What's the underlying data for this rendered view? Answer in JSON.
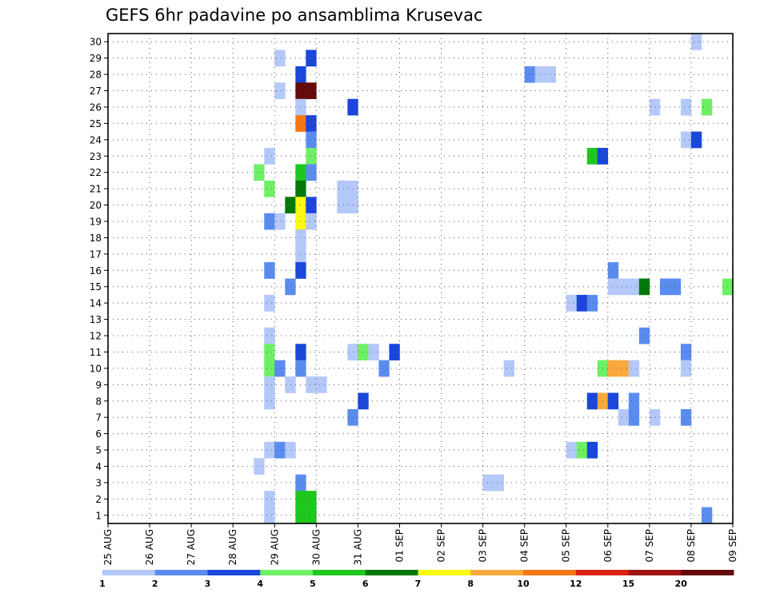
{
  "chart_data": {
    "type": "heatmap",
    "title": "GEFS 6hr padavine po ansamblima Krusevac",
    "x_tick_labels": [
      "25 AUG",
      "26 AUG",
      "27 AUG",
      "28 AUG",
      "29 AUG",
      "30 AUG",
      "31 AUG",
      "01 SEP",
      "02 SEP",
      "03 SEP",
      "04 SEP",
      "05 SEP",
      "06 SEP",
      "07 SEP",
      "08 SEP",
      "09 SEP"
    ],
    "y_tick_labels": [
      "1",
      "2",
      "3",
      "4",
      "5",
      "6",
      "7",
      "8",
      "9",
      "10",
      "11",
      "12",
      "13",
      "14",
      "15",
      "16",
      "17",
      "18",
      "19",
      "20",
      "21",
      "22",
      "23",
      "24",
      "25",
      "26",
      "27",
      "28",
      "29",
      "30"
    ],
    "x_range_steps": [
      0,
      60
    ],
    "y_range_members": [
      0.5,
      30.5
    ],
    "grid": true,
    "colorbar": {
      "placement": "bottom",
      "labels": [
        "1",
        "2",
        "3",
        "4",
        "5",
        "6",
        "7",
        "8",
        "10",
        "12",
        "15",
        "20"
      ],
      "colors": [
        "#b4c8fa",
        "#5a8cf0",
        "#1a46dc",
        "#6ef064",
        "#1ec81e",
        "#00780a",
        "#fafa14",
        "#faaa3c",
        "#f57814",
        "#dc2314",
        "#a01414",
        "#640a0a"
      ]
    },
    "cells_note": "step index (6h steps from 25 AUG 00z), member, color class (0-based)",
    "cells": [
      [
        56,
        30,
        0
      ],
      [
        16,
        29,
        0
      ],
      [
        19,
        29,
        2
      ],
      [
        18,
        28,
        2
      ],
      [
        40,
        28,
        1
      ],
      [
        41,
        28,
        0
      ],
      [
        42,
        28,
        0
      ],
      [
        16,
        27,
        0
      ],
      [
        18,
        27,
        11
      ],
      [
        19,
        27,
        11
      ],
      [
        18,
        26,
        0
      ],
      [
        23,
        26,
        2
      ],
      [
        52,
        26,
        0
      ],
      [
        55,
        26,
        0
      ],
      [
        57,
        26,
        3
      ],
      [
        18,
        25,
        8
      ],
      [
        19,
        25,
        2
      ],
      [
        19,
        24,
        1
      ],
      [
        55,
        24,
        0
      ],
      [
        56,
        24,
        2
      ],
      [
        15,
        23,
        0
      ],
      [
        19,
        23,
        3
      ],
      [
        46,
        23,
        4
      ],
      [
        47,
        23,
        2
      ],
      [
        14,
        22,
        3
      ],
      [
        18,
        22,
        4
      ],
      [
        19,
        22,
        1
      ],
      [
        15,
        21,
        3
      ],
      [
        18,
        21,
        5
      ],
      [
        22,
        21,
        0
      ],
      [
        23,
        21,
        0
      ],
      [
        17,
        20,
        5
      ],
      [
        18,
        20,
        6
      ],
      [
        19,
        20,
        2
      ],
      [
        22,
        20,
        0
      ],
      [
        23,
        20,
        0
      ],
      [
        15,
        19,
        1
      ],
      [
        16,
        19,
        0
      ],
      [
        18,
        19,
        6
      ],
      [
        19,
        19,
        0
      ],
      [
        18,
        18,
        0
      ],
      [
        18,
        17,
        0
      ],
      [
        15,
        16,
        1
      ],
      [
        18,
        16,
        2
      ],
      [
        48,
        16,
        1
      ],
      [
        17,
        15,
        1
      ],
      [
        48,
        15,
        0
      ],
      [
        49,
        15,
        0
      ],
      [
        50,
        15,
        0
      ],
      [
        51,
        15,
        5
      ],
      [
        53,
        15,
        1
      ],
      [
        54,
        15,
        1
      ],
      [
        59,
        15,
        3
      ],
      [
        15,
        14,
        0
      ],
      [
        44,
        14,
        0
      ],
      [
        45,
        14,
        2
      ],
      [
        46,
        14,
        1
      ],
      [
        15,
        12,
        0
      ],
      [
        51,
        12,
        1
      ],
      [
        15,
        11,
        3
      ],
      [
        18,
        11,
        2
      ],
      [
        23,
        11,
        0
      ],
      [
        24,
        11,
        3
      ],
      [
        25,
        11,
        0
      ],
      [
        27,
        11,
        2
      ],
      [
        55,
        11,
        1
      ],
      [
        15,
        10,
        3
      ],
      [
        16,
        10,
        1
      ],
      [
        18,
        10,
        1
      ],
      [
        26,
        10,
        1
      ],
      [
        38,
        10,
        0
      ],
      [
        47,
        10,
        3
      ],
      [
        48,
        10,
        7
      ],
      [
        49,
        10,
        7
      ],
      [
        50,
        10,
        0
      ],
      [
        55,
        10,
        0
      ],
      [
        15,
        9,
        0
      ],
      [
        17,
        9,
        0
      ],
      [
        19,
        9,
        0
      ],
      [
        20,
        9,
        0
      ],
      [
        15,
        8,
        0
      ],
      [
        24,
        8,
        2
      ],
      [
        46,
        8,
        2
      ],
      [
        47,
        8,
        7
      ],
      [
        48,
        8,
        2
      ],
      [
        50,
        8,
        1
      ],
      [
        23,
        7,
        1
      ],
      [
        49,
        7,
        0
      ],
      [
        50,
        7,
        1
      ],
      [
        52,
        7,
        0
      ],
      [
        55,
        7,
        1
      ],
      [
        15,
        5,
        0
      ],
      [
        16,
        5,
        1
      ],
      [
        17,
        5,
        0
      ],
      [
        44,
        5,
        0
      ],
      [
        45,
        5,
        3
      ],
      [
        46,
        5,
        2
      ],
      [
        14,
        4,
        0
      ],
      [
        18,
        3,
        1
      ],
      [
        36,
        3,
        0
      ],
      [
        37,
        3,
        0
      ],
      [
        15,
        2,
        0
      ],
      [
        18,
        2,
        4
      ],
      [
        19,
        2,
        4
      ],
      [
        15,
        1,
        0
      ],
      [
        18,
        1,
        4
      ],
      [
        19,
        1,
        4
      ],
      [
        57,
        1,
        1
      ]
    ]
  }
}
